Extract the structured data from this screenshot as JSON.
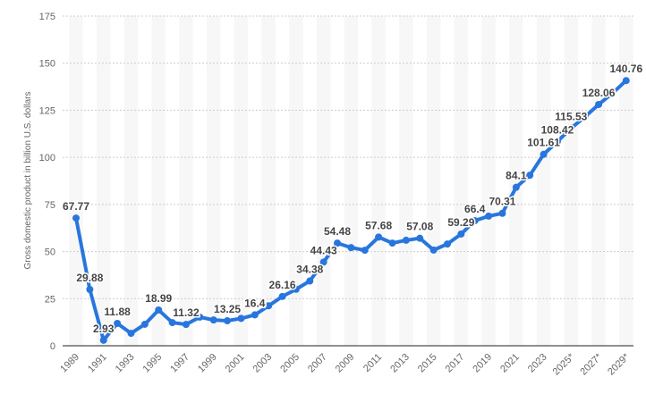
{
  "chart_data": {
    "type": "line",
    "title": "",
    "xlabel": "",
    "ylabel": "Gross domestic product in billion U.S. dollars",
    "ylim": [
      0,
      175
    ],
    "yticks": [
      0,
      25,
      50,
      75,
      100,
      125,
      150,
      175
    ],
    "grid": true,
    "color": "#2876dd",
    "x": [
      1989,
      1990,
      1991,
      1992,
      1993,
      1994,
      1995,
      1996,
      1997,
      1998,
      1999,
      2000,
      2001,
      2002,
      2003,
      2004,
      2005,
      2006,
      2007,
      2008,
      2009,
      2010,
      2011,
      2012,
      2013,
      2014,
      2015,
      2016,
      2017,
      2018,
      2019,
      2020,
      2021,
      2022,
      2023,
      2024,
      2025,
      2026,
      2027,
      2028,
      2029
    ],
    "values": [
      67.77,
      29.88,
      2.93,
      11.88,
      6.6,
      11.4,
      18.99,
      12.3,
      11.32,
      15.2,
      13.7,
      13.25,
      14.5,
      16.4,
      21.2,
      26.16,
      30.0,
      34.38,
      44.43,
      54.48,
      52.1,
      50.7,
      57.68,
      54.5,
      56.0,
      57.08,
      50.8,
      54.0,
      59.29,
      66.4,
      68.8,
      70.31,
      84.1,
      90.5,
      101.61,
      108.42,
      115.53,
      121.5,
      128.06,
      134.0,
      140.76
    ],
    "data_labels": [
      "67.77",
      "29.88",
      "2.93",
      "11.88",
      null,
      null,
      "18.99",
      null,
      "11.32",
      null,
      null,
      "13.25",
      null,
      "16.4",
      null,
      "26.16",
      null,
      "34.38",
      "44.43",
      "54.48",
      null,
      null,
      "57.68",
      null,
      null,
      "57.08",
      null,
      null,
      "59.29",
      "66.4",
      null,
      "70.31",
      "84.1",
      null,
      "101.61",
      "108.42",
      "115.53",
      null,
      "128.06",
      null,
      "140.76"
    ],
    "xtick_labels": [
      "1989",
      "1991",
      "1993",
      "1995",
      "1997",
      "1999",
      "2001",
      "2003",
      "2005",
      "2007",
      "2009",
      "2011",
      "2013",
      "2015",
      "2017",
      "2019",
      "2021",
      "2023",
      "2025*",
      "2027*",
      "2029*"
    ]
  }
}
